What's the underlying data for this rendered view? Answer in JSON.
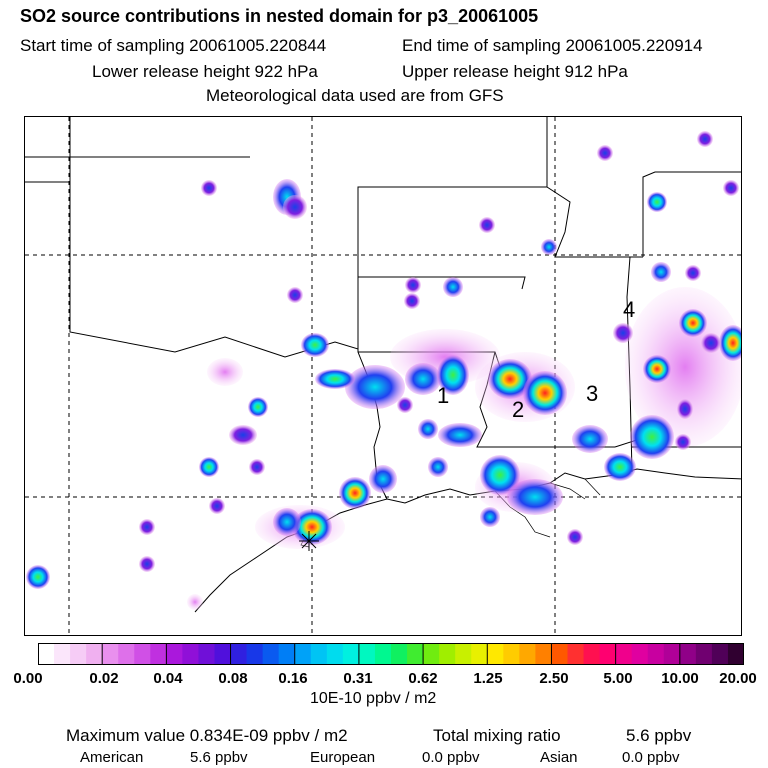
{
  "header": {
    "title": "SO2 source contributions in nested domain for p3_20061005",
    "start_time": "Start time of sampling 20061005.220844",
    "end_time": "End time of sampling 20061005.220914",
    "lower_release": "Lower release height  922 hPa",
    "upper_release": "Upper release height  912 hPa",
    "met_data": "Meteorological data used are from GFS"
  },
  "map": {
    "region_labels": [
      "1",
      "2",
      "3",
      "4"
    ]
  },
  "colorbar": {
    "ticks": [
      "0.00",
      "0.02",
      "0.04",
      "0.08",
      "0.16",
      "0.31",
      "0.62",
      "1.25",
      "2.50",
      "5.00",
      "10.00",
      "20.00"
    ],
    "colors": [
      "#ffffff",
      "#fbe6fb",
      "#f6ccf6",
      "#f0b0f0",
      "#e990ee",
      "#de70ea",
      "#d050e6",
      "#c030e0",
      "#aa18dc",
      "#9010d8",
      "#7010d8",
      "#5010dc",
      "#3020e0",
      "#1838e8",
      "#0a5af0",
      "#007ef6",
      "#00a2f8",
      "#00c4f4",
      "#00dcee",
      "#00f0e0",
      "#00f8c0",
      "#00f890",
      "#10f060",
      "#40ec30",
      "#70ec10",
      "#a0ee00",
      "#c8f000",
      "#e8f000",
      "#ffe800",
      "#ffcc00",
      "#ffa800",
      "#ff8000",
      "#ff5800",
      "#ff3030",
      "#ff1050",
      "#ff0070",
      "#f0008c",
      "#e000a0",
      "#c800a0",
      "#b00098",
      "#900088",
      "#700070",
      "#500058",
      "#300030"
    ],
    "units": "10E-10 ppbv / m2"
  },
  "footer": {
    "max_value": "Maximum value  0.834E-09 ppbv / m2",
    "total_label": "Total mixing ratio",
    "total_value": "5.6 ppbv",
    "sources": [
      {
        "name": "American",
        "value": "5.6 ppbv"
      },
      {
        "name": "European",
        "value": "0.0 ppbv"
      },
      {
        "name": "Asian",
        "value": "0.0 ppbv"
      }
    ]
  }
}
